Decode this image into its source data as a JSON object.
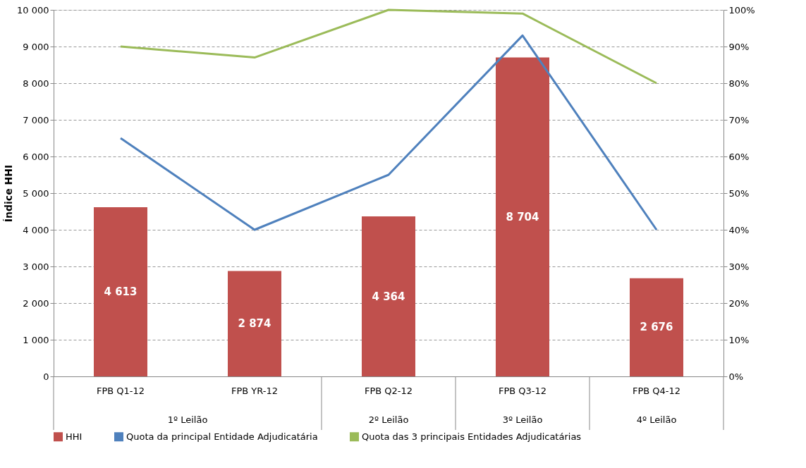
{
  "chart_data": {
    "type": "bar",
    "categories": [
      "FPB Q1-12",
      "FPB YR-12",
      "FPB Q2-12",
      "FPB Q3-12",
      "FPB Q4-12"
    ],
    "ylabel": "Índice HHI",
    "series": [
      {
        "name": "HHI",
        "color": "#c0504d",
        "values": [
          4613,
          2874,
          4364,
          8704,
          2676
        ],
        "value_labels": [
          "4 613",
          "2 874",
          "4 364",
          "8 704",
          "2 676"
        ]
      },
      {
        "name": "Quota da principal Entidade Adjudicatária",
        "type": "line",
        "axis": "y2",
        "color": "#4f81bd",
        "values": [
          65,
          40,
          55,
          93,
          40
        ]
      },
      {
        "name": "Quota das 3 principais Entidades Adjudicatárias",
        "type": "line",
        "axis": "y2",
        "color": "#9bbb59",
        "values": [
          90,
          87,
          100,
          99,
          80
        ]
      }
    ],
    "ylim": [
      0,
      10000
    ],
    "yticks": [
      0,
      {
        "value": 1000,
        "label": "1 000"
      },
      {
        "value": 2000,
        "label": "2 000"
      },
      {
        "value": 3000,
        "label": "3 000"
      },
      {
        "value": 4000,
        "label": "4 000"
      },
      {
        "value": 5000,
        "label": "5 000"
      },
      {
        "value": 6000,
        "label": "6 000"
      },
      {
        "value": 7000,
        "label": "7 000"
      },
      {
        "value": 8000,
        "label": "8 000"
      },
      {
        "value": 9000,
        "label": "9 000"
      },
      {
        "value": 10000,
        "label": "10 000"
      }
    ],
    "y2lim": [
      0,
      100
    ],
    "y2ticks": [
      {
        "value": 0,
        "label": "0%"
      },
      {
        "value": 10,
        "label": "10%"
      },
      {
        "value": 20,
        "label": "20%"
      },
      {
        "value": 30,
        "label": "30%"
      },
      {
        "value": 40,
        "label": "40%"
      },
      {
        "value": 50,
        "label": "50%"
      },
      {
        "value": 60,
        "label": "60%"
      },
      {
        "value": 70,
        "label": "70%"
      },
      {
        "value": 80,
        "label": "80%"
      },
      {
        "value": 90,
        "label": "90%"
      },
      {
        "value": 100,
        "label": "100%"
      }
    ],
    "annotations": [
      "1º Leilão",
      "2º Leilão",
      "3º Leilão",
      "4º Leilão"
    ],
    "grid": "y",
    "legend": "bottom",
    "marker": "none",
    "line_style": "solid"
  }
}
